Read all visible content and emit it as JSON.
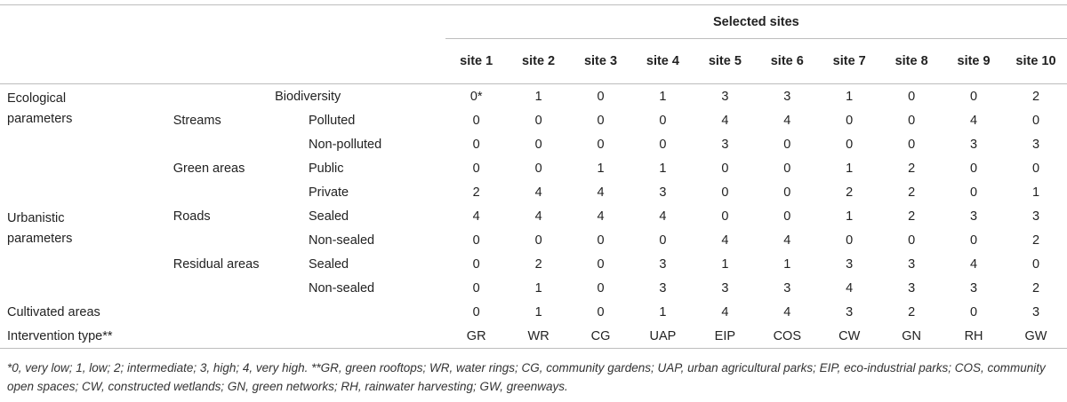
{
  "table": {
    "group_header": "Selected sites",
    "sites": [
      "site 1",
      "site 2",
      "site 3",
      "site 4",
      "site 5",
      "site 6",
      "site 7",
      "site 8",
      "site 9",
      "site 10"
    ],
    "rows": [
      {
        "c1": "Ecological parameters",
        "c2": "",
        "c3": "",
        "bio": "Biodiversity",
        "values": [
          "0*",
          "1",
          "0",
          "1",
          "3",
          "3",
          "1",
          "0",
          "0",
          "2"
        ]
      },
      {
        "c1": "",
        "c2": "Streams",
        "c3": "Polluted",
        "values": [
          "0",
          "0",
          "0",
          "0",
          "4",
          "4",
          "0",
          "0",
          "4",
          "0"
        ]
      },
      {
        "c1": "",
        "c2": "",
        "c3": "Non-polluted",
        "values": [
          "0",
          "0",
          "0",
          "0",
          "3",
          "0",
          "0",
          "0",
          "3",
          "3"
        ]
      },
      {
        "c1": "",
        "c2": "Green areas",
        "c3": "Public",
        "values": [
          "0",
          "0",
          "1",
          "1",
          "0",
          "0",
          "1",
          "2",
          "0",
          "0"
        ]
      },
      {
        "c1": "",
        "c2": "",
        "c3": "Private",
        "values": [
          "2",
          "4",
          "4",
          "3",
          "0",
          "0",
          "2",
          "2",
          "0",
          "1"
        ]
      },
      {
        "c1": "Urbanistic parameters",
        "c2": "Roads",
        "c3": "Sealed",
        "values": [
          "4",
          "4",
          "4",
          "4",
          "0",
          "0",
          "1",
          "2",
          "3",
          "3"
        ]
      },
      {
        "c1": "",
        "c2": "",
        "c3": "Non-sealed",
        "values": [
          "0",
          "0",
          "0",
          "0",
          "4",
          "4",
          "0",
          "0",
          "0",
          "2"
        ]
      },
      {
        "c1": "",
        "c2": "Residual areas",
        "c3": "Sealed",
        "values": [
          "0",
          "2",
          "0",
          "3",
          "1",
          "1",
          "3",
          "3",
          "4",
          "0"
        ]
      },
      {
        "c1": "",
        "c2": "",
        "c3": "Non-sealed",
        "values": [
          "0",
          "1",
          "0",
          "3",
          "3",
          "3",
          "4",
          "3",
          "3",
          "2"
        ]
      },
      {
        "c1": "Cultivated areas",
        "c2": "",
        "c3": "",
        "values": [
          "0",
          "1",
          "0",
          "1",
          "4",
          "4",
          "3",
          "2",
          "0",
          "3"
        ]
      },
      {
        "c1": "Intervention type**",
        "c2": "",
        "c3": "",
        "values": [
          "GR",
          "WR",
          "CG",
          "UAP",
          "EIP",
          "COS",
          "CW",
          "GN",
          "RH",
          "GW"
        ]
      }
    ]
  },
  "footnote": "*0, very low; 1, low; 2; intermediate; 3, high; 4, very high. **GR, green rooftops; WR, water rings; CG, community gardens; UAP, urban agricultural parks; EIP, eco-industrial parks; COS, community open spaces; CW, constructed wetlands; GN, green networks; RH, rainwater harvesting; GW, greenways."
}
